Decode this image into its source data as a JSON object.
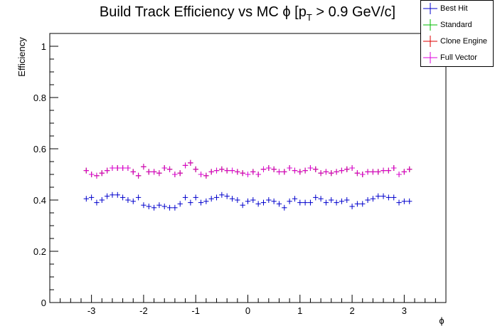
{
  "chart_data": {
    "type": "scatter",
    "title_main": "Build Track Efficiency vs MC ",
    "title_phi": "ϕ",
    "title_bracket": " [p",
    "title_sub": "T",
    "title_rest": " > 0.9 GeV/c]",
    "xlabel": "ϕ",
    "ylabel": "Efficiency",
    "xlim": [
      -3.8,
      3.8
    ],
    "ylim": [
      0,
      1.05
    ],
    "xticks": [
      -3,
      -2,
      -1,
      0,
      1,
      2,
      3
    ],
    "xtick_labels": [
      "-3",
      "-2",
      "-1",
      "0",
      "1",
      "2",
      "3"
    ],
    "yticks": [
      0,
      0.2,
      0.4,
      0.6,
      0.8,
      1
    ],
    "ytick_labels": [
      "0",
      "0.2",
      "0.4",
      "0.6",
      "0.8",
      "1"
    ],
    "x": [
      -3.1,
      -3.0,
      -2.9,
      -2.8,
      -2.7,
      -2.6,
      -2.5,
      -2.4,
      -2.3,
      -2.2,
      -2.1,
      -2.0,
      -1.9,
      -1.8,
      -1.7,
      -1.6,
      -1.5,
      -1.4,
      -1.3,
      -1.2,
      -1.1,
      -1.0,
      -0.9,
      -0.8,
      -0.7,
      -0.6,
      -0.5,
      -0.4,
      -0.3,
      -0.2,
      -0.1,
      0.0,
      0.1,
      0.2,
      0.3,
      0.4,
      0.5,
      0.6,
      0.7,
      0.8,
      0.9,
      1.0,
      1.1,
      1.2,
      1.3,
      1.4,
      1.5,
      1.6,
      1.7,
      1.8,
      1.9,
      2.0,
      2.1,
      2.2,
      2.3,
      2.4,
      2.5,
      2.6,
      2.7,
      2.8,
      2.9,
      3.0,
      3.1
    ],
    "series": [
      {
        "name": "Best Hit",
        "color": "#0000cc",
        "values": [
          0.405,
          0.41,
          0.39,
          0.4,
          0.415,
          0.42,
          0.42,
          0.41,
          0.4,
          0.395,
          0.41,
          0.38,
          0.375,
          0.37,
          0.38,
          0.375,
          0.37,
          0.37,
          0.385,
          0.41,
          0.39,
          0.41,
          0.39,
          0.395,
          0.405,
          0.41,
          0.42,
          0.415,
          0.405,
          0.4,
          0.38,
          0.395,
          0.4,
          0.385,
          0.39,
          0.4,
          0.395,
          0.385,
          0.37,
          0.395,
          0.405,
          0.39,
          0.39,
          0.39,
          0.41,
          0.405,
          0.39,
          0.4,
          0.39,
          0.395,
          0.4,
          0.375,
          0.385,
          0.385,
          0.4,
          0.405,
          0.415,
          0.415,
          0.41,
          0.41,
          0.39,
          0.395,
          0.395
        ]
      },
      {
        "name": "Standard",
        "color": "#00bb00",
        "values": [
          0.515,
          0.5,
          0.495,
          0.505,
          0.515,
          0.525,
          0.525,
          0.525,
          0.525,
          0.51,
          0.495,
          0.53,
          0.51,
          0.51,
          0.505,
          0.525,
          0.52,
          0.5,
          0.505,
          0.535,
          0.545,
          0.52,
          0.5,
          0.495,
          0.51,
          0.515,
          0.52,
          0.515,
          0.515,
          0.51,
          0.505,
          0.5,
          0.51,
          0.5,
          0.52,
          0.525,
          0.52,
          0.51,
          0.51,
          0.525,
          0.515,
          0.51,
          0.515,
          0.525,
          0.52,
          0.505,
          0.51,
          0.505,
          0.51,
          0.515,
          0.52,
          0.525,
          0.505,
          0.5,
          0.51,
          0.51,
          0.51,
          0.515,
          0.515,
          0.525,
          0.5,
          0.51,
          0.52
        ]
      },
      {
        "name": "Clone Engine",
        "color": "#dd0000",
        "values": [
          0.515,
          0.5,
          0.495,
          0.505,
          0.515,
          0.525,
          0.525,
          0.525,
          0.525,
          0.51,
          0.495,
          0.53,
          0.51,
          0.51,
          0.505,
          0.525,
          0.52,
          0.5,
          0.505,
          0.535,
          0.545,
          0.52,
          0.5,
          0.495,
          0.51,
          0.515,
          0.52,
          0.515,
          0.515,
          0.51,
          0.505,
          0.5,
          0.51,
          0.5,
          0.52,
          0.525,
          0.52,
          0.51,
          0.51,
          0.525,
          0.515,
          0.51,
          0.515,
          0.525,
          0.52,
          0.505,
          0.51,
          0.505,
          0.51,
          0.515,
          0.52,
          0.525,
          0.505,
          0.5,
          0.51,
          0.51,
          0.51,
          0.515,
          0.515,
          0.525,
          0.5,
          0.51,
          0.52
        ]
      },
      {
        "name": "Full Vector",
        "color": "#dd00dd",
        "values": [
          0.515,
          0.5,
          0.495,
          0.505,
          0.515,
          0.525,
          0.525,
          0.525,
          0.525,
          0.51,
          0.495,
          0.53,
          0.51,
          0.51,
          0.505,
          0.525,
          0.52,
          0.5,
          0.505,
          0.535,
          0.545,
          0.52,
          0.5,
          0.495,
          0.51,
          0.515,
          0.52,
          0.515,
          0.515,
          0.51,
          0.505,
          0.5,
          0.51,
          0.5,
          0.52,
          0.525,
          0.52,
          0.51,
          0.51,
          0.525,
          0.515,
          0.51,
          0.515,
          0.525,
          0.52,
          0.505,
          0.51,
          0.505,
          0.51,
          0.515,
          0.52,
          0.525,
          0.505,
          0.5,
          0.51,
          0.51,
          0.51,
          0.515,
          0.515,
          0.525,
          0.5,
          0.51,
          0.52
        ]
      }
    ],
    "legend_position": "top-right",
    "grid": false
  }
}
